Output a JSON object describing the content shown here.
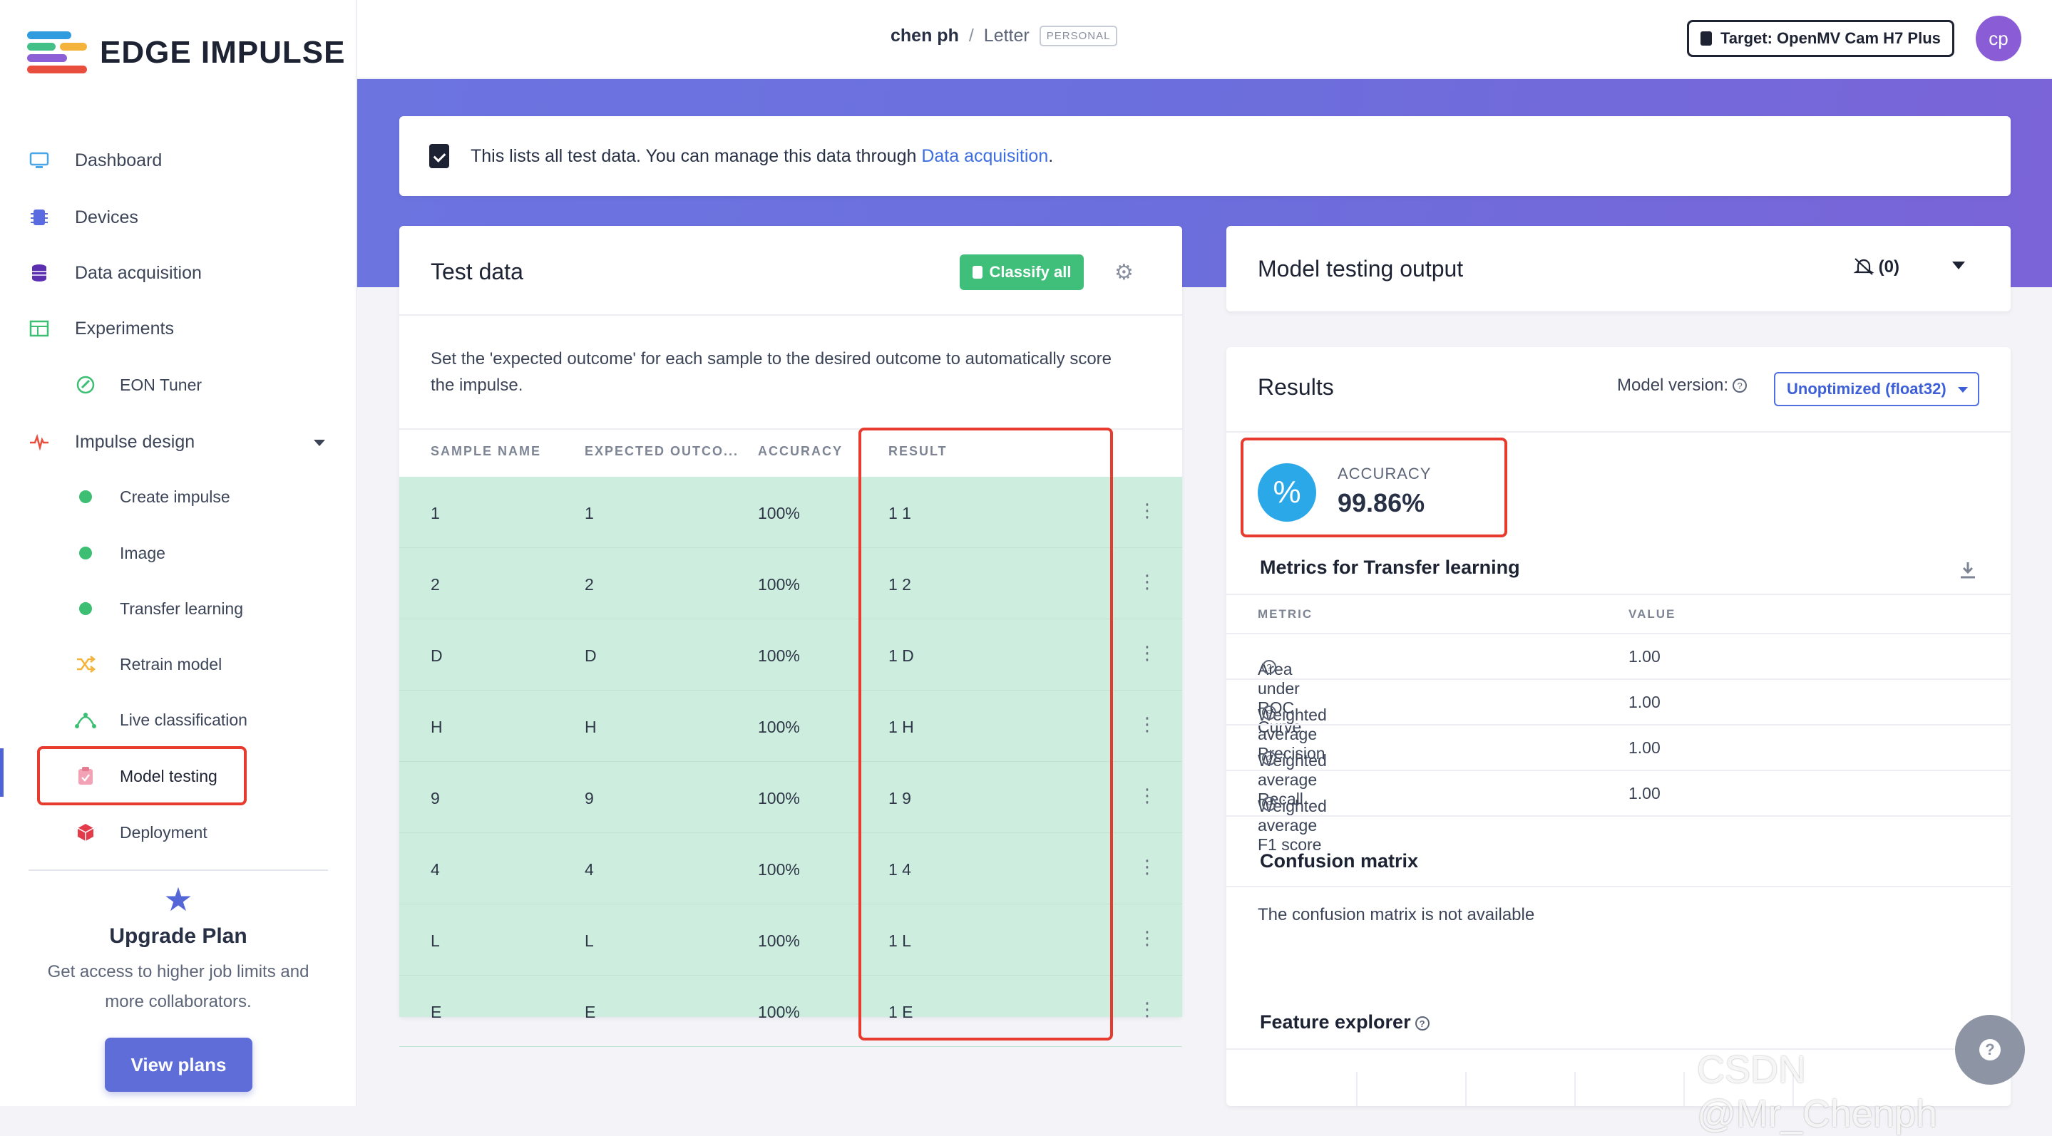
{
  "brand": {
    "name": "EDGE IMPULSE"
  },
  "sidebar": {
    "items": [
      {
        "label": "Dashboard",
        "icon": "monitor-icon"
      },
      {
        "label": "Devices",
        "icon": "chip-icon"
      },
      {
        "label": "Data acquisition",
        "icon": "database-icon"
      },
      {
        "label": "Experiments",
        "icon": "table-icon"
      },
      {
        "label": "EON Tuner",
        "icon": "tuner-icon"
      },
      {
        "label": "Impulse design",
        "icon": "pulse-icon"
      },
      {
        "label": "Create impulse",
        "icon": "dot-icon"
      },
      {
        "label": "Image",
        "icon": "dot-icon"
      },
      {
        "label": "Transfer learning",
        "icon": "dot-icon"
      },
      {
        "label": "Retrain model",
        "icon": "shuffle-icon"
      },
      {
        "label": "Live classification",
        "icon": "graph-icon"
      },
      {
        "label": "Model testing",
        "icon": "clipboard-check-icon"
      },
      {
        "label": "Deployment",
        "icon": "cube-icon"
      }
    ],
    "upgrade": {
      "title": "Upgrade Plan",
      "text": "Get access to higher job limits and more collaborators.",
      "button": "View plans"
    }
  },
  "header": {
    "user": "chen ph",
    "separator": "/",
    "project": "Letter",
    "badge": "PERSONAL",
    "target": "Target: OpenMV Cam H7 Plus",
    "avatar": "cp"
  },
  "notice": {
    "text": "This lists all test data. You can manage this data through ",
    "link": "Data acquisition",
    "suffix": "."
  },
  "test_data": {
    "title": "Test data",
    "classify_button": "Classify all",
    "description": "Set the 'expected outcome' for each sample to the desired outcome to automatically score the impulse.",
    "columns": [
      "SAMPLE NAME",
      "EXPECTED OUTCO...",
      "ACCURACY",
      "RESULT"
    ],
    "rows": [
      {
        "name": "1",
        "expected": "1",
        "accuracy": "100%",
        "result": "1 1"
      },
      {
        "name": "2",
        "expected": "2",
        "accuracy": "100%",
        "result": "1 2"
      },
      {
        "name": "D",
        "expected": "D",
        "accuracy": "100%",
        "result": "1 D"
      },
      {
        "name": "H",
        "expected": "H",
        "accuracy": "100%",
        "result": "1 H"
      },
      {
        "name": "9",
        "expected": "9",
        "accuracy": "100%",
        "result": "1 9"
      },
      {
        "name": "4",
        "expected": "4",
        "accuracy": "100%",
        "result": "1 4"
      },
      {
        "name": "L",
        "expected": "L",
        "accuracy": "100%",
        "result": "1 L"
      },
      {
        "name": "E",
        "expected": "E",
        "accuracy": "100%",
        "result": "1 E"
      }
    ],
    "row_color": "#cdeede"
  },
  "output": {
    "title": "Model testing output",
    "notifications": "(0)"
  },
  "results": {
    "title": "Results",
    "model_version_label": "Model version:",
    "model_version_value": "Unoptimized (float32)",
    "accuracy_label": "ACCURACY",
    "accuracy_value": "99.86%",
    "metrics_title": "Metrics for Transfer learning",
    "metric_columns": [
      "METRIC",
      "VALUE"
    ],
    "metrics": [
      {
        "name": "Area under ROC Curve",
        "value": "1.00"
      },
      {
        "name": "Weighted average Precision",
        "value": "1.00"
      },
      {
        "name": "Weighted average Recall",
        "value": "1.00"
      },
      {
        "name": "Weighted average F1 score",
        "value": "1.00"
      }
    ],
    "confusion_title": "Confusion matrix",
    "confusion_text": "The confusion matrix is not available",
    "feature_title": "Feature explorer"
  },
  "watermark": "CSDN @Mr_Chenph",
  "colors": {
    "accent": "#5f6dd8",
    "success": "#3fbf7a",
    "highlight": "#e63b2e"
  }
}
